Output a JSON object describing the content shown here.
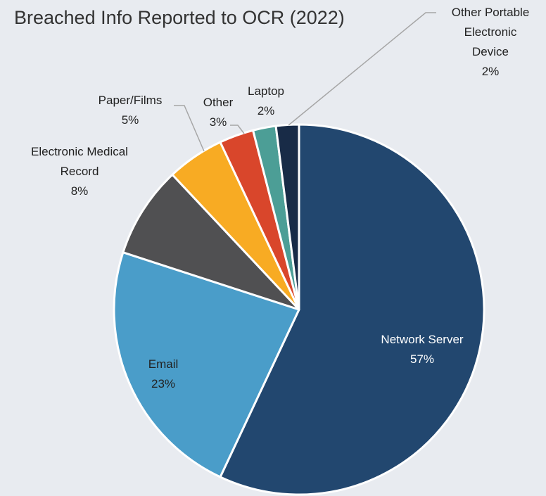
{
  "chart_data": {
    "type": "pie",
    "title": "Breached Info Reported to OCR (2022)",
    "categories": [
      "Network Server",
      "Email",
      "Electronic Medical Record",
      "Paper/Films",
      "Other",
      "Laptop",
      "Other Portable Electronic Device"
    ],
    "values": [
      57,
      23,
      8,
      5,
      3,
      2,
      2
    ],
    "value_labels": [
      "57%",
      "23%",
      "8%",
      "5%",
      "3%",
      "2%",
      "2%"
    ],
    "colors": [
      "#22476f",
      "#4a9dc9",
      "#505052",
      "#f8ab23",
      "#d9462b",
      "#4c9e96",
      "#182b47"
    ]
  }
}
